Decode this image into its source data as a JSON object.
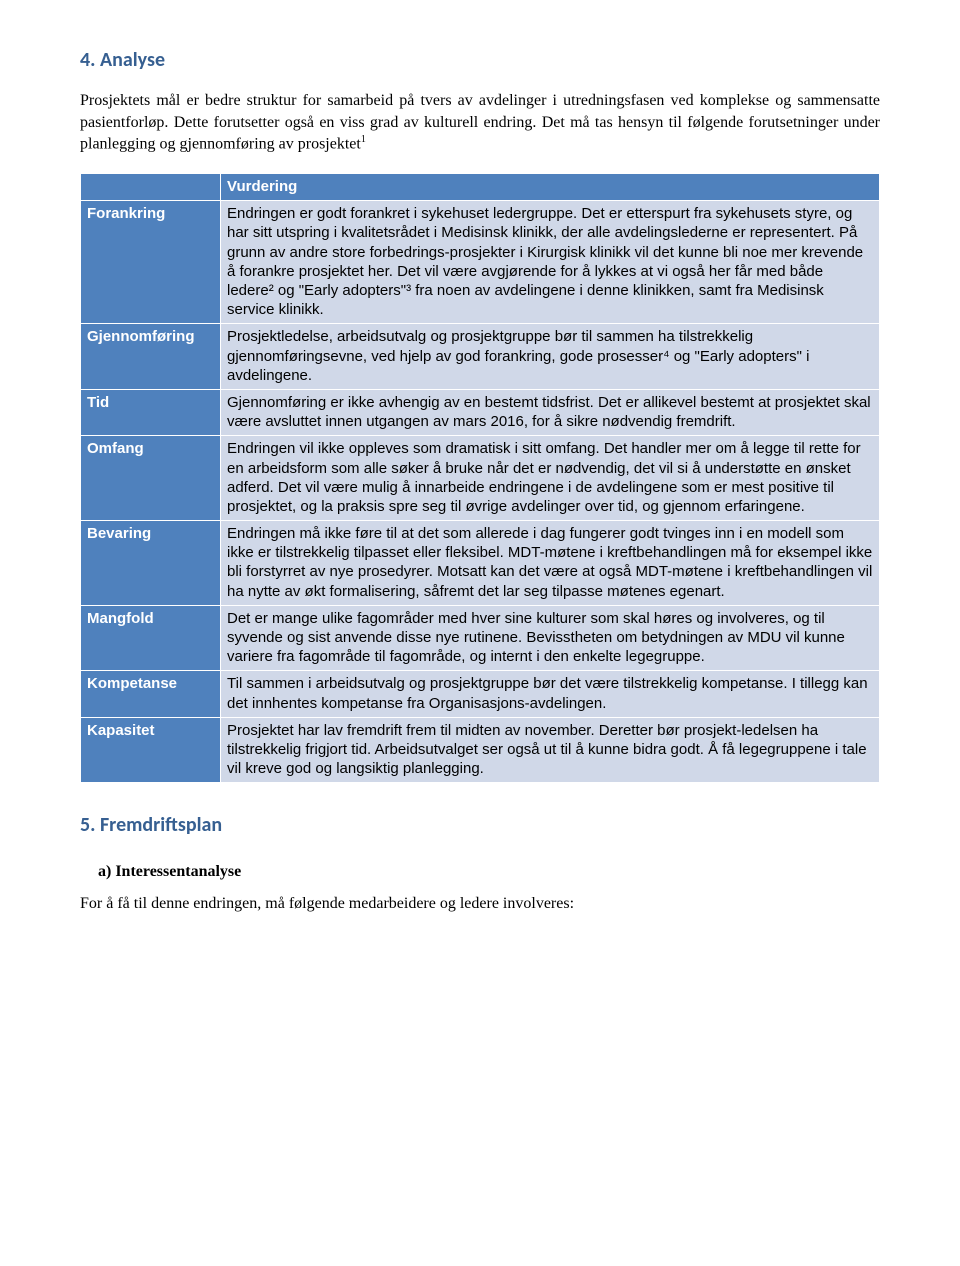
{
  "heading1": "4. Analyse",
  "intro": "Prosjektets mål er bedre struktur for samarbeid på tvers av avdelinger i utredningsfasen ved komplekse og sammensatte pasientforløp. Dette forutsetter også en viss grad av kulturell endring. Det må tas hensyn til følgende forutsetninger under planlegging og gjennomføring av prosjektet",
  "intro_footnote": "1",
  "table": {
    "header_left": "",
    "header_right": "Vurdering",
    "rows": [
      {
        "label": "Forankring",
        "value": "Endringen er godt forankret i sykehuset ledergruppe. Det er etterspurt fra sykehusets styre, og har sitt utspring i kvalitetsrådet i Medisinsk klinikk, der alle avdelingslederne er representert. På grunn av andre store forbedrings-prosjekter i Kirurgisk klinikk vil det kunne bli noe mer krevende å forankre prosjektet her. Det vil være avgjørende for å lykkes at vi også her får med både ledere² og \"Early adopters\"³ fra noen av avdelingene i denne klinikken, samt fra Medisinsk service klinikk."
      },
      {
        "label": "Gjennomføring",
        "value": "Prosjektledelse, arbeidsutvalg og prosjektgruppe bør til sammen ha tilstrekkelig gjennomføringsevne, ved hjelp av god forankring, gode prosesser⁴ og \"Early adopters\" i avdelingene."
      },
      {
        "label": "Tid",
        "value": "Gjennomføring er ikke avhengig av en bestemt tidsfrist. Det er allikevel bestemt at prosjektet skal være avsluttet innen utgangen av mars 2016, for å sikre nødvendig fremdrift."
      },
      {
        "label": "Omfang",
        "value": "Endringen vil ikke oppleves som dramatisk i sitt omfang. Det handler mer om å legge til rette for en arbeidsform som alle søker å bruke når det er nødvendig, det vil si å understøtte en ønsket adferd. Det vil være mulig å innarbeide endringene i de avdelingene som er mest positive til prosjektet, og la praksis spre seg til øvrige avdelinger over tid, og gjennom erfaringene."
      },
      {
        "label": "Bevaring",
        "value": "Endringen må ikke føre til at det som allerede i dag fungerer godt tvinges inn i en modell som ikke er tilstrekkelig tilpasset eller fleksibel. MDT-møtene i kreftbehandlingen må for eksempel ikke bli forstyrret av nye prosedyrer. Motsatt kan det være at også MDT-møtene i kreftbehandlingen vil ha nytte av økt formalisering, såfremt det lar seg tilpasse møtenes egenart."
      },
      {
        "label": "Mangfold",
        "value": "Det er mange ulike fagområder med hver sine kulturer som skal høres og involveres, og til syvende og sist anvende disse nye rutinene. Bevisstheten om betydningen av MDU vil kunne variere fra fagområde til fagområde, og internt i den enkelte legegruppe."
      },
      {
        "label": "Kompetanse",
        "value": "Til sammen i arbeidsutvalg og prosjektgruppe bør det være tilstrekkelig kompetanse. I tillegg kan det innhentes kompetanse fra Organisasjons-avdelingen."
      },
      {
        "label": "Kapasitet",
        "value": "Prosjektet har lav fremdrift frem til midten av november. Deretter bør prosjekt-ledelsen ha tilstrekkelig frigjort tid. Arbeidsutvalget ser også ut til å kunne bidra godt. Å få legegruppene i tale vil kreve god og langsiktig planlegging."
      }
    ]
  },
  "heading2": "5. Fremdriftsplan",
  "sub_a": "a)  Interessentanalyse",
  "closing": "For å få til denne endringen, må følgende medarbeidere og ledere involveres:"
}
